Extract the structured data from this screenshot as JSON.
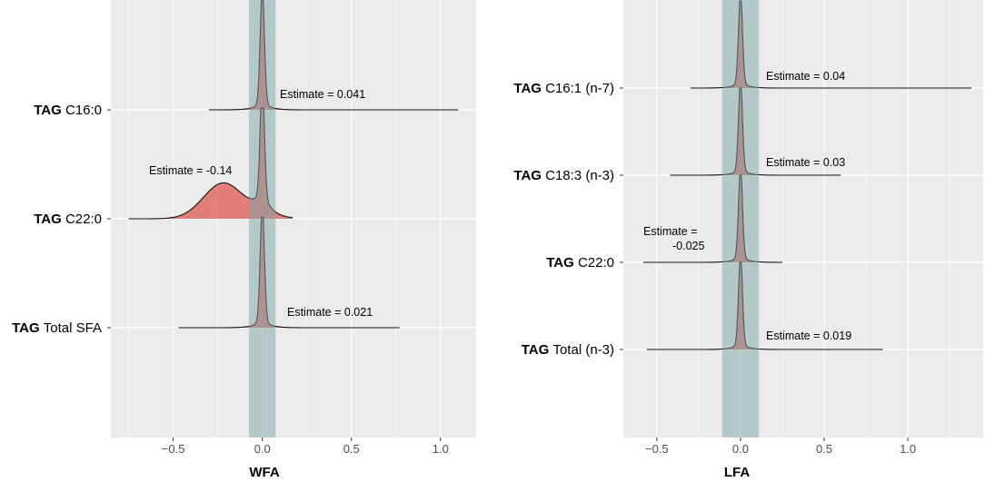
{
  "chart_data": [
    {
      "type": "ridgeline",
      "xlabel": "WFA",
      "xlim": [
        -0.85,
        1.2
      ],
      "xticks": [
        -0.5,
        0.0,
        0.5,
        1.0
      ],
      "xtick_labels": [
        "−0.5",
        "0.0",
        "0.5",
        "1.0"
      ],
      "reference_band": [
        -0.075,
        0.075
      ],
      "grid": true,
      "rows": [
        {
          "label_bold": "TAG",
          "label_rest": "C16:0",
          "estimate": 0.041,
          "annotation": "Estimate = 0.041",
          "range": [
            -0.3,
            1.1
          ],
          "peak_height": 1.0
        },
        {
          "label_bold": "TAG",
          "label_rest": "C22:0",
          "estimate": -0.14,
          "annotation": "Estimate = -0.14",
          "range": [
            -0.75,
            0.17
          ],
          "peak_height": 1.0,
          "secondary_mode": {
            "center": -0.22,
            "height": 0.32
          }
        },
        {
          "label_bold": "TAG",
          "label_rest": "Total SFA",
          "estimate": 0.021,
          "annotation": "Estimate = 0.021",
          "range": [
            -0.47,
            0.77
          ],
          "peak_height": 1.0
        }
      ]
    },
    {
      "type": "ridgeline",
      "xlabel": "LFA",
      "xlim": [
        -0.7,
        1.45
      ],
      "xticks": [
        -0.5,
        0.0,
        0.5,
        1.0
      ],
      "xtick_labels": [
        "−0.5",
        "0.0",
        "0.5",
        "1.0"
      ],
      "reference_band": [
        -0.11,
        0.11
      ],
      "grid": true,
      "rows": [
        {
          "label_bold": "TAG",
          "label_rest": "C16:1  (n-7)",
          "estimate": 0.04,
          "annotation": "Estimate = 0.04",
          "range": [
            -0.3,
            1.38
          ],
          "peak_height": 1.0
        },
        {
          "label_bold": "TAG",
          "label_rest": "C18:3  (n-3)",
          "estimate": 0.03,
          "annotation": "Estimate = 0.03",
          "range": [
            -0.42,
            0.6
          ],
          "peak_height": 1.0
        },
        {
          "label_bold": "TAG",
          "label_rest": "C22:0",
          "estimate": -0.025,
          "annotation_lines": [
            "Estimate =",
            "-0.025"
          ],
          "range": [
            -0.58,
            0.25
          ],
          "peak_height": 1.0
        },
        {
          "label_bold": "TAG",
          "label_rest": "Total  (n-3)",
          "estimate": 0.019,
          "annotation": "Estimate = 0.019",
          "range": [
            -0.56,
            0.85
          ],
          "peak_height": 1.0
        }
      ]
    }
  ],
  "colors": {
    "panel_bg": "#ebebeb",
    "grid": "#ffffff",
    "band": "#7ca5a5",
    "band_opacity": 0.5,
    "fill": "#e0706a",
    "fill_opacity": 0.88,
    "outline": "#111111",
    "tick_line": "#333333"
  }
}
